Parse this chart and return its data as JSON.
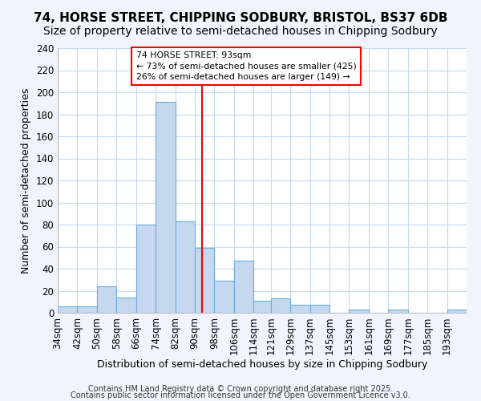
{
  "title": "74, HORSE STREET, CHIPPING SODBURY, BRISTOL, BS37 6DB",
  "subtitle": "Size of property relative to semi-detached houses in Chipping Sodbury",
  "xlabel": "Distribution of semi-detached houses by size in Chipping Sodbury",
  "ylabel": "Number of semi-detached properties",
  "footer_line1": "Contains HM Land Registry data © Crown copyright and database right 2025.",
  "footer_line2": "Contains public sector information licensed under the Open Government Licence v3.0.",
  "property_label": "74 HORSE STREET: 93sqm",
  "smaller_pct": 73,
  "smaller_count": 425,
  "larger_pct": 26,
  "larger_count": 149,
  "property_size": 93,
  "bin_edges": [
    34,
    42,
    50,
    58,
    66,
    74,
    82,
    90,
    98,
    106,
    114,
    121,
    129,
    137,
    145,
    153,
    161,
    169,
    177,
    185,
    193
  ],
  "bin_labels": [
    "34sqm",
    "42sqm",
    "50sqm",
    "58sqm",
    "66sqm",
    "74sqm",
    "82sqm",
    "90sqm",
    "98sqm",
    "106sqm",
    "114sqm",
    "121sqm",
    "129sqm",
    "137sqm",
    "145sqm",
    "153sqm",
    "161sqm",
    "169sqm",
    "177sqm",
    "185sqm",
    "193sqm"
  ],
  "counts": [
    6,
    6,
    24,
    14,
    80,
    191,
    83,
    59,
    29,
    47,
    11,
    13,
    7,
    7,
    0,
    3,
    0,
    3,
    0,
    0,
    3
  ],
  "bar_color": "#c5d8f0",
  "bar_edge_color": "#6aaed6",
  "vline_color": "#ff0000",
  "annotation_box_color": "#ffffff",
  "annotation_box_edge": "#ff0000",
  "background_color": "#f0f4fc",
  "plot_bg_color": "#ffffff",
  "ylim": [
    0,
    240
  ],
  "yticks": [
    0,
    20,
    40,
    60,
    80,
    100,
    120,
    140,
    160,
    180,
    200,
    220,
    240
  ],
  "grid_color": "#c8d8ec",
  "title_fontsize": 11,
  "subtitle_fontsize": 10,
  "axis_label_fontsize": 9,
  "tick_fontsize": 8.5
}
